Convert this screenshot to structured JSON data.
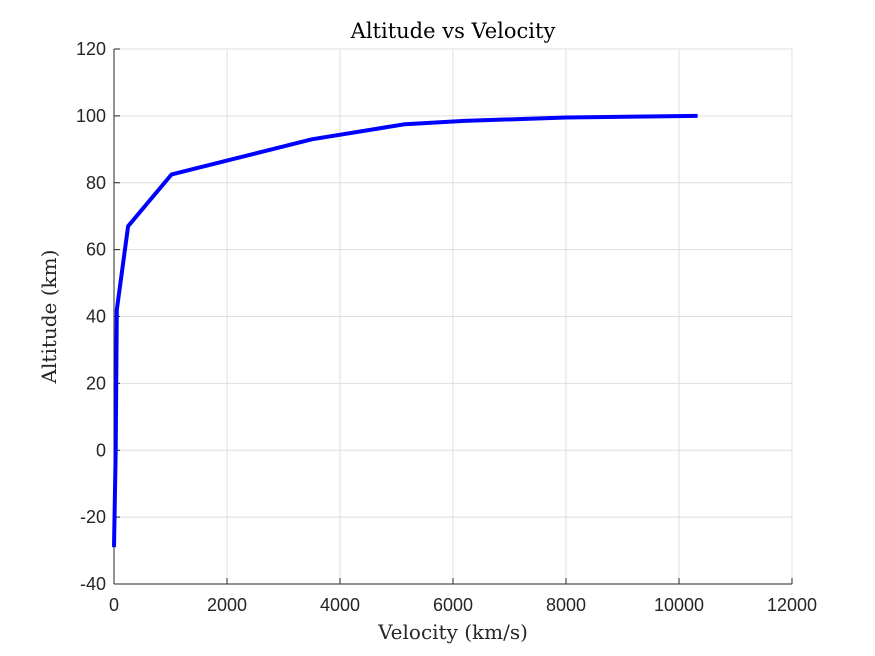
{
  "chart_data": {
    "type": "line",
    "title": "Altitude vs Velocity",
    "xlabel": "Velocity (km/s)",
    "ylabel": "Altitude (km)",
    "xlim": [
      0,
      12000
    ],
    "ylim": [
      -40,
      120
    ],
    "xticks": [
      0,
      2000,
      4000,
      6000,
      8000,
      10000,
      12000
    ],
    "yticks": [
      -40,
      -20,
      0,
      20,
      40,
      60,
      80,
      100,
      120
    ],
    "xtick_labels": [
      "0",
      "2000",
      "4000",
      "6000",
      "8000",
      "10000",
      "12000"
    ],
    "ytick_labels": [
      "-40",
      "-20",
      "0",
      "20",
      "40",
      "60",
      "80",
      "100",
      "120"
    ],
    "grid": true,
    "series": [
      {
        "color": "#0000ff",
        "x": [
          0,
          30,
          50,
          250,
          1020,
          3500,
          5150,
          6200,
          8000,
          10330
        ],
        "y": [
          -29,
          0,
          42,
          67,
          82.5,
          93,
          97.5,
          98.5,
          99.5,
          100
        ]
      }
    ]
  }
}
